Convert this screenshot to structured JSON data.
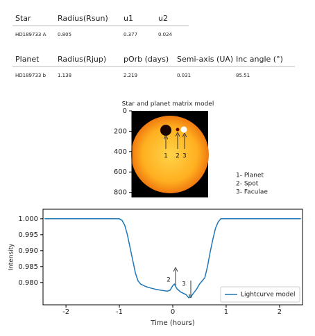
{
  "tables": [
    {
      "header": [
        "Star",
        "Radius(Rsun)",
        "u1",
        "u2"
      ],
      "rows": [
        [
          "HD189733 A",
          "0.805",
          "0.377",
          "0.024"
        ]
      ]
    },
    {
      "header": [
        "Planet",
        "Radius(Rjup)",
        "pOrb (days)",
        "Semi-axis (UA)",
        "Inc angle (°)"
      ],
      "rows": [
        [
          "HD189733 b",
          "1.138",
          "2.219",
          "0.031",
          "85.51"
        ]
      ]
    }
  ],
  "chart_data": [
    {
      "type": "image",
      "title": "Star and planet matrix model",
      "ylim": [
        0,
        850
      ],
      "yticks": [
        0,
        200,
        400,
        600,
        800
      ],
      "annotations": [
        "1",
        "2",
        "3"
      ],
      "legend_text": [
        "1- Planet",
        "2- Spot",
        "3- Faculae"
      ]
    },
    {
      "type": "line",
      "xlabel": "Time (hours)",
      "ylabel": "Intensity",
      "x": [
        -2.4,
        -1.0,
        -0.95,
        -0.9,
        -0.85,
        -0.8,
        -0.75,
        -0.7,
        -0.65,
        -0.6,
        -0.5,
        -0.4,
        -0.3,
        -0.2,
        -0.1,
        -0.05,
        0,
        0.03,
        0.08,
        0.15,
        0.25,
        0.3,
        0.35,
        0.45,
        0.5,
        0.55,
        0.6,
        0.65,
        0.7,
        0.75,
        0.8,
        0.85,
        0.9,
        0.95,
        2.4
      ],
      "series": [
        {
          "name": "Lightcurve model",
          "color": "#1f77b4",
          "values": [
            1.0,
            1.0,
            0.9995,
            0.998,
            0.995,
            0.991,
            0.987,
            0.983,
            0.9805,
            0.9795,
            0.9787,
            0.9782,
            0.9778,
            0.9775,
            0.9773,
            0.9776,
            0.979,
            0.9795,
            0.978,
            0.977,
            0.9762,
            0.9752,
            0.9758,
            0.978,
            0.9795,
            0.9805,
            0.9815,
            0.985,
            0.9895,
            0.9935,
            0.997,
            0.999,
            1.0,
            1.0,
            1.0
          ]
        }
      ],
      "xlim": [
        -2.43,
        2.43
      ],
      "ylim": [
        0.973,
        1.003
      ],
      "xticks": [
        -2,
        -1,
        0,
        1,
        2
      ],
      "yticks": [
        {
          "value": 0.98,
          "label": "0.980"
        },
        {
          "value": 0.985,
          "label": "0.985"
        },
        {
          "value": 0.99,
          "label": "0.990"
        },
        {
          "value": 0.995,
          "label": "0.995"
        },
        {
          "value": 1.0,
          "label": "1.000"
        }
      ],
      "annotations": [
        "2",
        "3"
      ],
      "legend_position": "lower right"
    }
  ]
}
